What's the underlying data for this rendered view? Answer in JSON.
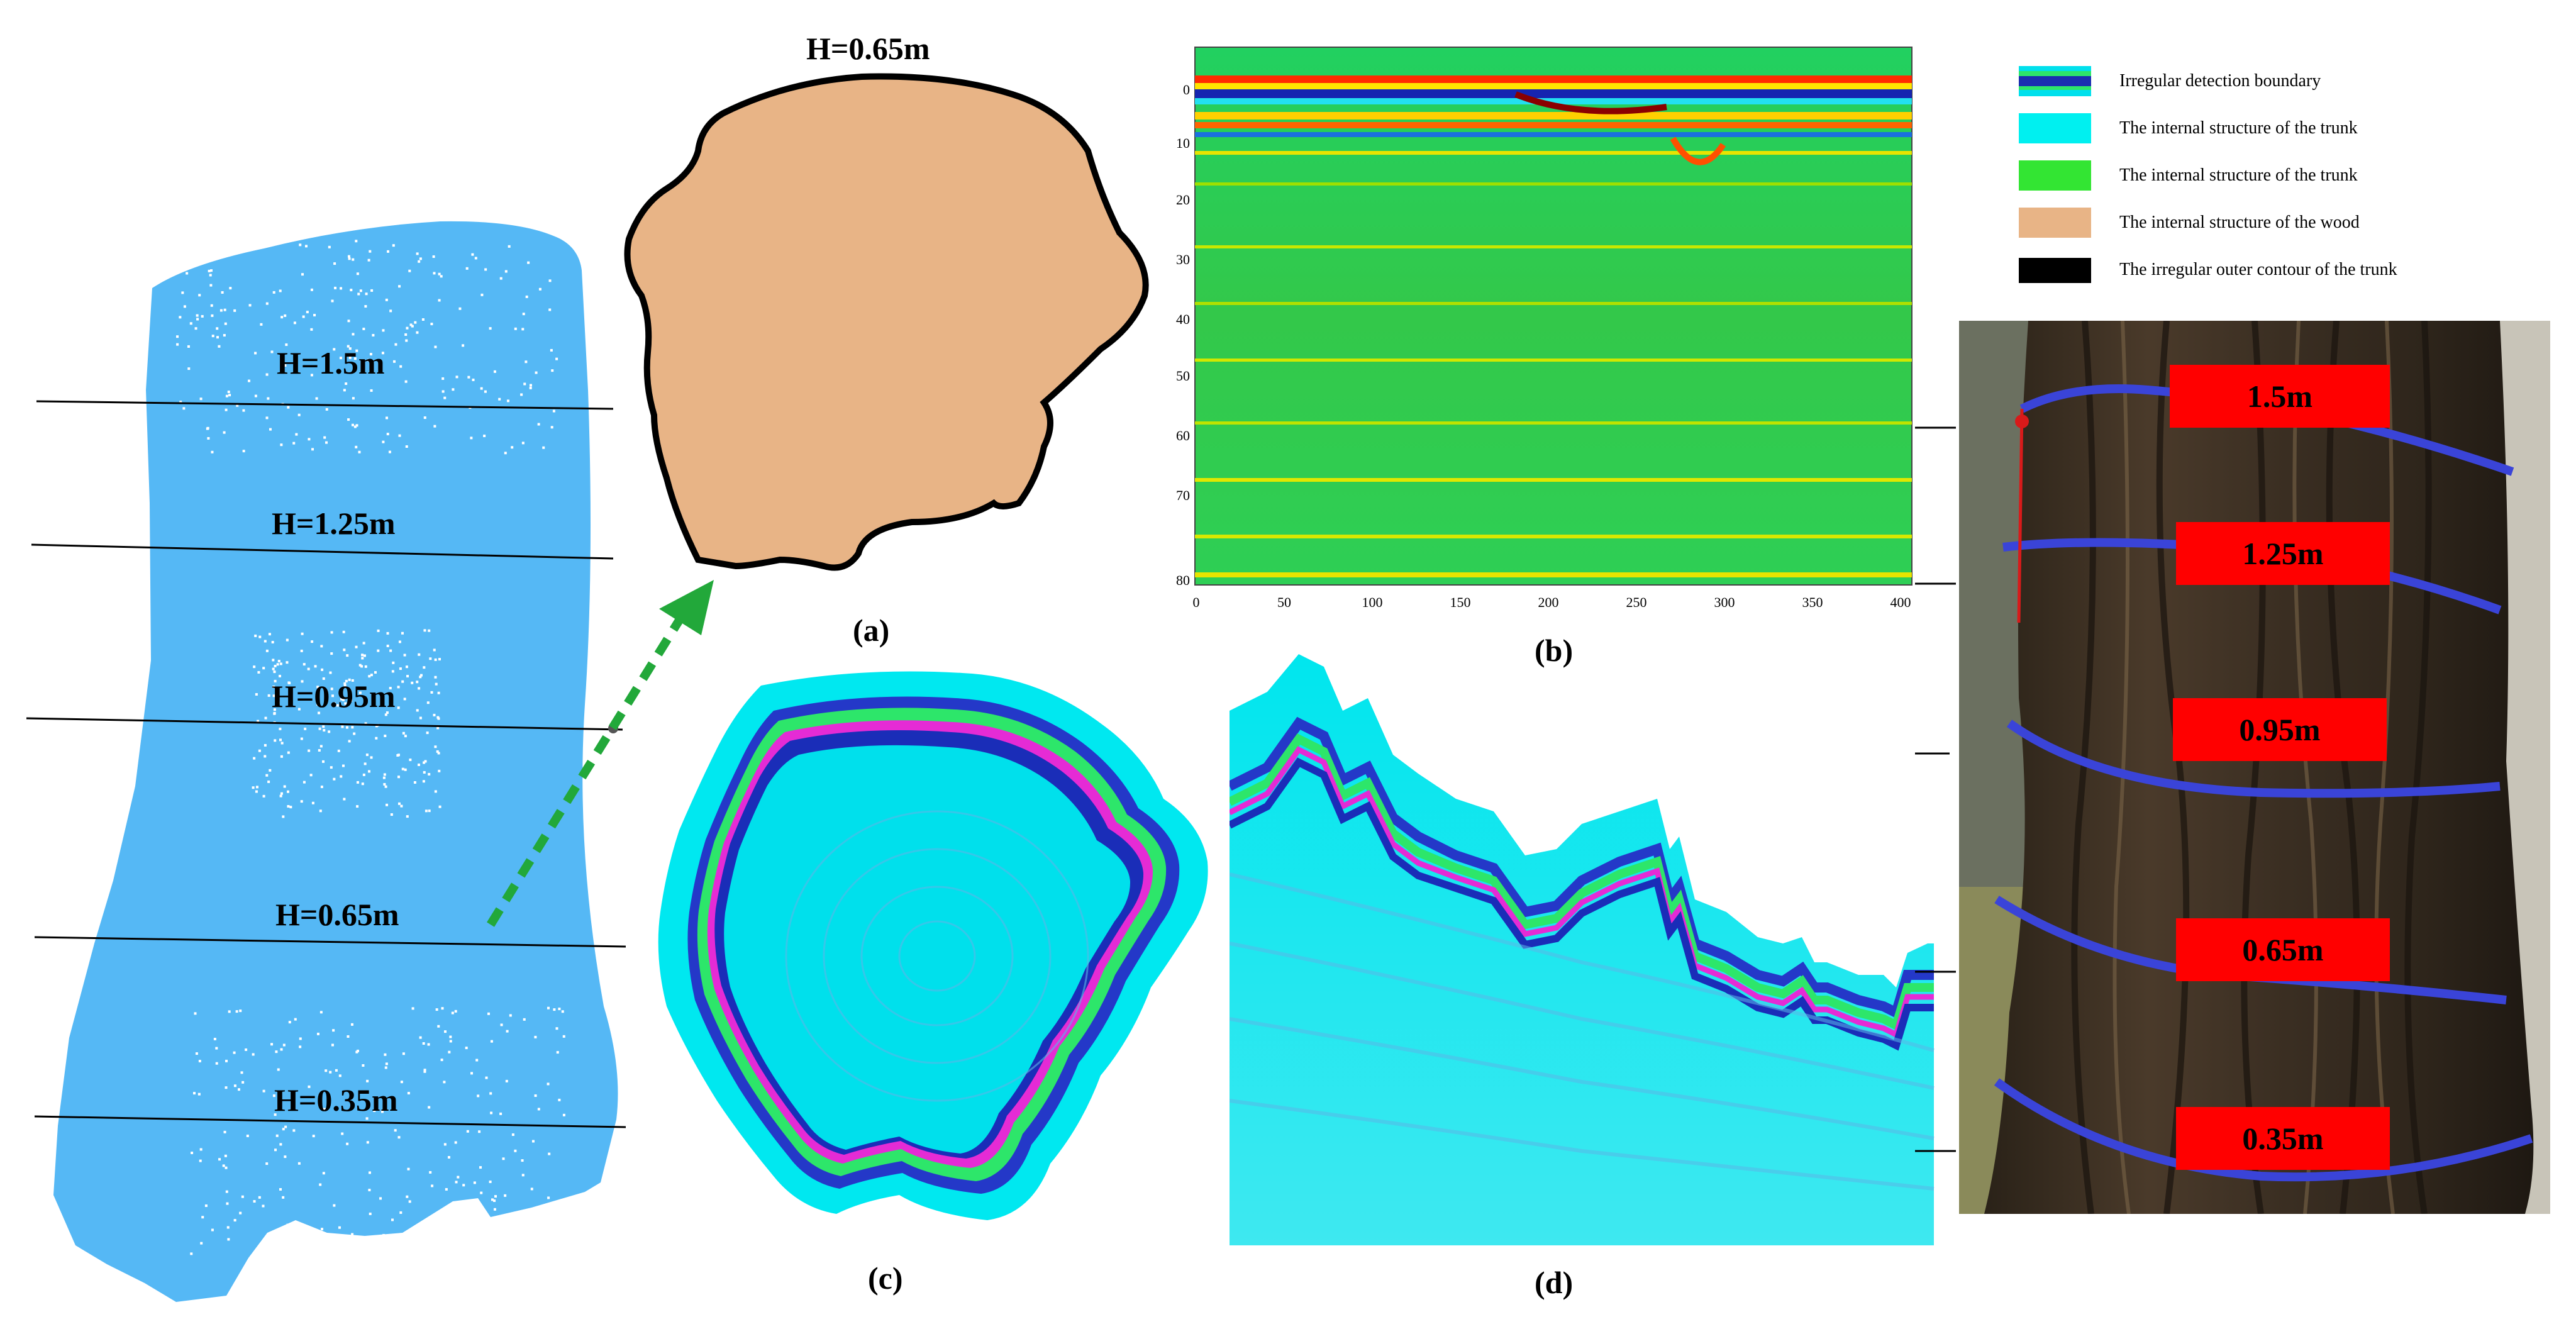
{
  "trunk_levels": [
    "H=1.5m",
    "H=1.25m",
    "H=0.95m",
    "H=0.65m",
    "H=0.35m"
  ],
  "panel_a": {
    "title": "H=0.65m",
    "caption": "(a)"
  },
  "panel_b": {
    "caption": "(b)",
    "y_ticks": [
      "0",
      "10",
      "20",
      "30",
      "40",
      "50",
      "60",
      "70",
      "80"
    ],
    "x_ticks": [
      "0",
      "50",
      "100",
      "150",
      "200",
      "250",
      "300",
      "350",
      "400"
    ]
  },
  "panel_c": {
    "caption": "(c)"
  },
  "panel_d": {
    "caption": "(d)"
  },
  "legend": [
    {
      "label": "Irregular detection boundary",
      "color": "#1a2fb0"
    },
    {
      "label": "The internal structure of the trunk",
      "color": "#00f0f0"
    },
    {
      "label": "The internal structure of the trunk",
      "color": "#33e533"
    },
    {
      "label": "The internal structure of the wood",
      "color": "#e8b486"
    },
    {
      "label": "The irregular outer contour of the trunk",
      "color": "#000000"
    }
  ],
  "photo_tags": [
    "1.5m",
    "1.25m",
    "0.95m",
    "0.65m",
    "0.35m"
  ],
  "colors": {
    "point_cloud": "#55b8f5",
    "wood": "#e8b486",
    "ribbon": "#3a44d8",
    "tag": "#ff0000",
    "arrow": "#22a83a"
  }
}
